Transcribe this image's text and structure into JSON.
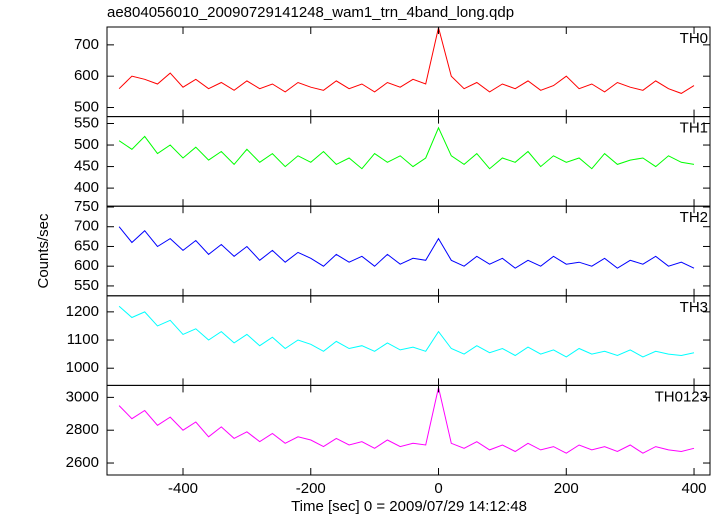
{
  "title": "ae804056010_20090729141248_wam1_trn_4band_long.qdp",
  "y_label": "Counts/sec",
  "x_label": "Time [sec] 0 = 2009/07/29 14:12:48",
  "chart_data": [
    {
      "type": "line",
      "label": "TH0",
      "color": "#ff0000",
      "xlim": [
        -519,
        425
      ],
      "xticks": [
        -400,
        -200,
        0,
        200,
        400
      ],
      "ylim": [
        471,
        757
      ],
      "yticks": [
        500,
        600,
        700
      ],
      "x": [
        -500,
        -480,
        -460,
        -440,
        -420,
        -400,
        -380,
        -360,
        -340,
        -320,
        -300,
        -280,
        -260,
        -240,
        -220,
        -200,
        -180,
        -160,
        -140,
        -120,
        -100,
        -80,
        -60,
        -40,
        -20,
        0,
        20,
        40,
        60,
        80,
        100,
        120,
        140,
        160,
        180,
        200,
        220,
        240,
        260,
        280,
        300,
        320,
        340,
        360,
        380,
        400
      ],
      "values": [
        560,
        600,
        590,
        575,
        610,
        565,
        590,
        560,
        580,
        555,
        585,
        560,
        575,
        550,
        580,
        565,
        555,
        585,
        560,
        575,
        550,
        580,
        565,
        590,
        575,
        755,
        600,
        560,
        580,
        550,
        575,
        560,
        585,
        555,
        570,
        600,
        560,
        575,
        550,
        580,
        565,
        555,
        585,
        560,
        545,
        570
      ]
    },
    {
      "type": "line",
      "label": "TH1",
      "color": "#00ff00",
      "xlim": [
        -519,
        425
      ],
      "xticks": [
        -400,
        -200,
        0,
        200,
        400
      ],
      "ylim": [
        358,
        566
      ],
      "yticks": [
        400,
        450,
        500,
        550
      ],
      "x": [
        -500,
        -480,
        -460,
        -440,
        -420,
        -400,
        -380,
        -360,
        -340,
        -320,
        -300,
        -280,
        -260,
        -240,
        -220,
        -200,
        -180,
        -160,
        -140,
        -120,
        -100,
        -80,
        -60,
        -40,
        -20,
        0,
        20,
        40,
        60,
        80,
        100,
        120,
        140,
        160,
        180,
        200,
        220,
        240,
        260,
        280,
        300,
        320,
        340,
        360,
        380,
        400
      ],
      "values": [
        510,
        490,
        520,
        480,
        500,
        470,
        495,
        465,
        485,
        455,
        490,
        460,
        480,
        450,
        475,
        460,
        485,
        455,
        470,
        445,
        480,
        460,
        475,
        450,
        470,
        540,
        475,
        455,
        480,
        445,
        470,
        460,
        485,
        450,
        475,
        460,
        470,
        445,
        480,
        455,
        465,
        470,
        450,
        475,
        460,
        455
      ]
    },
    {
      "type": "line",
      "label": "TH2",
      "color": "#0000ff",
      "xlim": [
        -519,
        425
      ],
      "xticks": [
        -400,
        -200,
        0,
        200,
        400
      ],
      "ylim": [
        525,
        752
      ],
      "yticks": [
        550,
        600,
        650,
        700,
        750
      ],
      "x": [
        -500,
        -480,
        -460,
        -440,
        -420,
        -400,
        -380,
        -360,
        -340,
        -320,
        -300,
        -280,
        -260,
        -240,
        -220,
        -200,
        -180,
        -160,
        -140,
        -120,
        -100,
        -80,
        -60,
        -40,
        -20,
        0,
        20,
        40,
        60,
        80,
        100,
        120,
        140,
        160,
        180,
        200,
        220,
        240,
        260,
        280,
        300,
        320,
        340,
        360,
        380,
        400
      ],
      "values": [
        700,
        660,
        690,
        650,
        670,
        640,
        665,
        630,
        655,
        625,
        650,
        615,
        640,
        610,
        635,
        620,
        600,
        630,
        610,
        625,
        600,
        630,
        605,
        620,
        615,
        670,
        615,
        600,
        625,
        605,
        620,
        595,
        615,
        600,
        625,
        605,
        610,
        600,
        620,
        595,
        615,
        605,
        625,
        600,
        610,
        595
      ]
    },
    {
      "type": "line",
      "label": "TH3",
      "color": "#00ffff",
      "xlim": [
        -519,
        425
      ],
      "xticks": [
        -400,
        -200,
        0,
        200,
        400
      ],
      "ylim": [
        939,
        1257
      ],
      "yticks": [
        1000,
        1100,
        1200
      ],
      "x": [
        -500,
        -480,
        -460,
        -440,
        -420,
        -400,
        -380,
        -360,
        -340,
        -320,
        -300,
        -280,
        -260,
        -240,
        -220,
        -200,
        -180,
        -160,
        -140,
        -120,
        -100,
        -80,
        -60,
        -40,
        -20,
        0,
        20,
        40,
        60,
        80,
        100,
        120,
        140,
        160,
        180,
        200,
        220,
        240,
        260,
        280,
        300,
        320,
        340,
        360,
        380,
        400
      ],
      "values": [
        1220,
        1180,
        1200,
        1150,
        1170,
        1120,
        1140,
        1100,
        1130,
        1090,
        1120,
        1080,
        1110,
        1070,
        1100,
        1085,
        1060,
        1095,
        1070,
        1080,
        1060,
        1090,
        1065,
        1075,
        1060,
        1130,
        1070,
        1050,
        1080,
        1055,
        1070,
        1045,
        1075,
        1050,
        1065,
        1040,
        1070,
        1050,
        1060,
        1045,
        1065,
        1040,
        1060,
        1050,
        1045,
        1055
      ]
    },
    {
      "type": "line",
      "label": "TH0123",
      "color": "#ff00ff",
      "xlim": [
        -519,
        425
      ],
      "xticks": [
        -400,
        -200,
        0,
        200,
        400
      ],
      "ylim": [
        2527,
        3073
      ],
      "yticks": [
        2600,
        2800,
        3000
      ],
      "x": [
        -500,
        -480,
        -460,
        -440,
        -420,
        -400,
        -380,
        -360,
        -340,
        -320,
        -300,
        -280,
        -260,
        -240,
        -220,
        -200,
        -180,
        -160,
        -140,
        -120,
        -100,
        -80,
        -60,
        -40,
        -20,
        0,
        20,
        40,
        60,
        80,
        100,
        120,
        140,
        160,
        180,
        200,
        220,
        240,
        260,
        280,
        300,
        320,
        340,
        360,
        380,
        400
      ],
      "values": [
        2950,
        2870,
        2920,
        2830,
        2880,
        2800,
        2850,
        2760,
        2820,
        2750,
        2790,
        2730,
        2780,
        2720,
        2760,
        2740,
        2700,
        2750,
        2710,
        2730,
        2690,
        2740,
        2700,
        2720,
        2710,
        3060,
        2720,
        2690,
        2730,
        2680,
        2710,
        2670,
        2720,
        2680,
        2700,
        2660,
        2710,
        2680,
        2700,
        2670,
        2710,
        2660,
        2700,
        2680,
        2670,
        2690
      ]
    }
  ]
}
